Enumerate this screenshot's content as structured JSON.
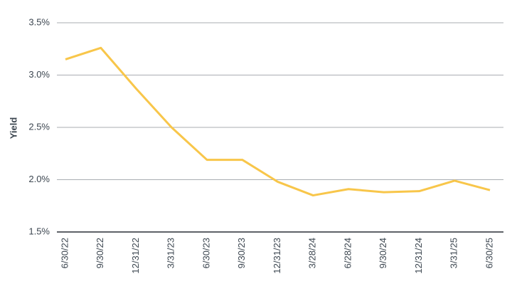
{
  "chart_data": {
    "type": "line",
    "y_label": "Yield",
    "categories": [
      "6/30/22",
      "9/30/22",
      "12/31/22",
      "3/31/23",
      "6/30/23",
      "9/30/23",
      "12/31/23",
      "3/28/24",
      "6/28/24",
      "9/30/24",
      "12/31/24",
      "3/31/25",
      "6/30/25"
    ],
    "series": [
      {
        "name": "Yield",
        "color": "#f8c64a",
        "values": [
          3.15,
          3.26,
          2.87,
          2.5,
          2.19,
          2.19,
          1.98,
          1.85,
          1.91,
          1.88,
          1.89,
          1.99,
          1.9
        ]
      }
    ],
    "ylim": [
      1.5,
      3.5
    ],
    "yticks": [
      {
        "value": 1.5,
        "label": "1.5%"
      },
      {
        "value": 2.0,
        "label": "2.0%"
      },
      {
        "value": 2.5,
        "label": "2.5%"
      },
      {
        "value": 3.0,
        "label": "3.0%"
      },
      {
        "value": 3.5,
        "label": "3.5%"
      }
    ],
    "grid": true
  }
}
